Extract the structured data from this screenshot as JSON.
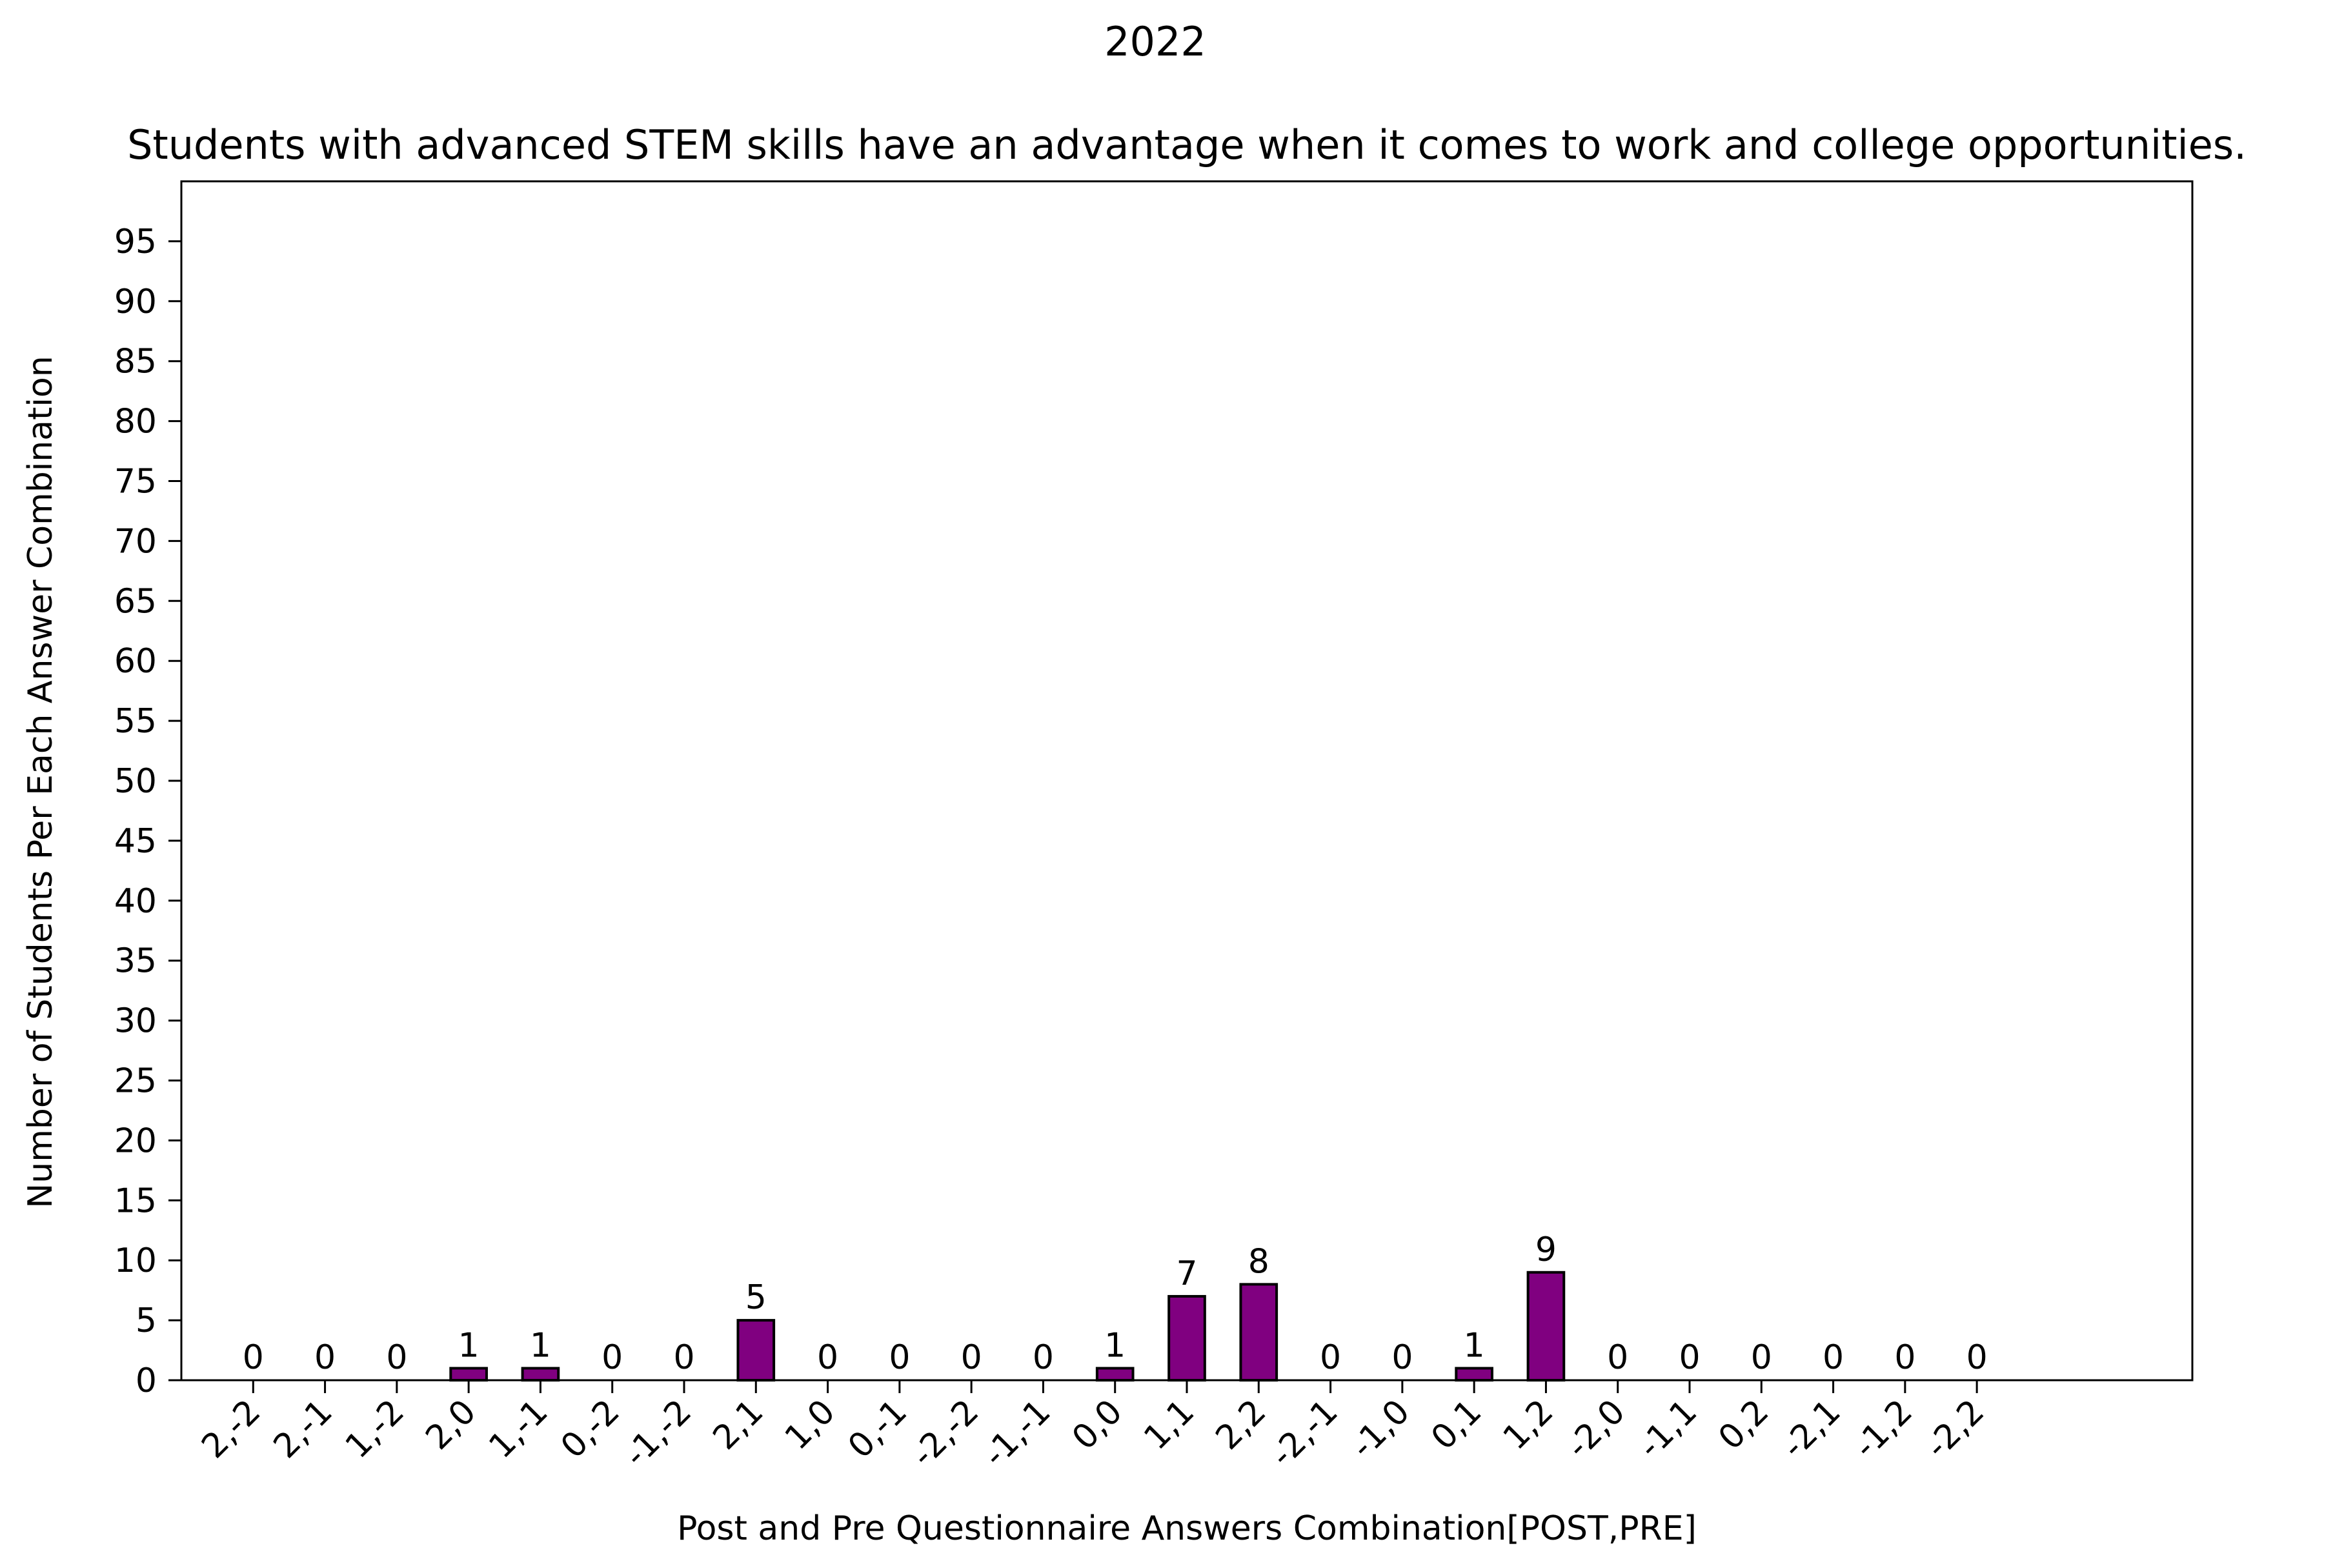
{
  "chart_data": {
    "type": "bar",
    "suptitle": "2022",
    "title": "Students with advanced STEM skills have an advantage when it comes to work and college opportunities.",
    "xlabel": "Post and Pre Questionnaire Answers Combination[POST,PRE]",
    "ylabel": "Number of Students Per Each Answer Combination",
    "categories": [
      "2,-2",
      "2,-1",
      "1,-2",
      "2,0",
      "1,-1",
      "0,-2",
      "-1,-2",
      "2,1",
      "1,0",
      "0,-1",
      "-2,-2",
      "-1,-1",
      "0,0",
      "1,1",
      "2,2",
      "-2,-1",
      "-1,0",
      "0,1",
      "1,2",
      "-2,0",
      "-1,1",
      "0,2",
      "-2,1",
      "-1,2",
      "-2,2"
    ],
    "values": [
      0,
      0,
      0,
      1,
      1,
      0,
      0,
      5,
      0,
      0,
      0,
      0,
      1,
      7,
      8,
      0,
      0,
      1,
      9,
      0,
      0,
      0,
      0,
      0,
      0
    ],
    "ylim": [
      0,
      100
    ],
    "yticks": [
      0,
      5,
      10,
      15,
      20,
      25,
      30,
      35,
      40,
      45,
      50,
      55,
      60,
      65,
      70,
      75,
      80,
      85,
      90,
      95
    ],
    "data_labels": true,
    "grid": false,
    "legend": "none",
    "bar_color": "#800080",
    "bar_edge_color": "#000000"
  }
}
